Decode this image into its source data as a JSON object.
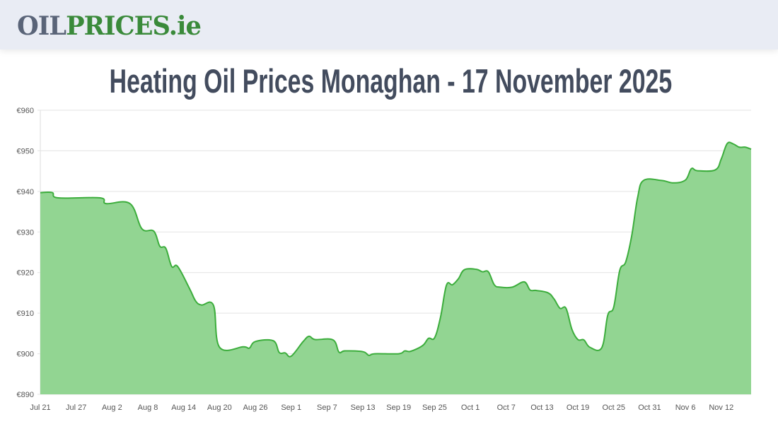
{
  "header": {
    "logo_part1": "OIL",
    "logo_part2": "PRICES.ie"
  },
  "page_title": "Heating Oil Prices Monaghan - 17 November 2025",
  "colors": {
    "line": "#3cad3c",
    "fill": "#92d592",
    "grid": "#e3e3e3",
    "logo_gray": "#5a6478",
    "logo_green": "#3a8a3a"
  },
  "chart_data": {
    "type": "area",
    "title": "",
    "xlabel": "",
    "ylabel": "",
    "ylim": [
      890,
      960
    ],
    "xlim": [
      "2025-07-21",
      "2025-11-17"
    ],
    "grid": true,
    "y_ticks": [
      "€890",
      "€900",
      "€910",
      "€920",
      "€930",
      "€940",
      "€950",
      "€960"
    ],
    "y_tick_values": [
      890,
      900,
      910,
      920,
      930,
      940,
      950,
      960
    ],
    "x_ticks": [
      {
        "label": "Jul 21",
        "date": "2025-07-21"
      },
      {
        "label": "Jul 27",
        "date": "2025-07-27"
      },
      {
        "label": "Aug 2",
        "date": "2025-08-02"
      },
      {
        "label": "Aug 8",
        "date": "2025-08-08"
      },
      {
        "label": "Aug 14",
        "date": "2025-08-14"
      },
      {
        "label": "Aug 20",
        "date": "2025-08-20"
      },
      {
        "label": "Aug 26",
        "date": "2025-08-26"
      },
      {
        "label": "Sep 1",
        "date": "2025-09-01"
      },
      {
        "label": "Sep 7",
        "date": "2025-09-07"
      },
      {
        "label": "Sep 13",
        "date": "2025-09-13"
      },
      {
        "label": "Sep 19",
        "date": "2025-09-19"
      },
      {
        "label": "Sep 25",
        "date": "2025-09-25"
      },
      {
        "label": "Oct 1",
        "date": "2025-10-01"
      },
      {
        "label": "Oct 7",
        "date": "2025-10-07"
      },
      {
        "label": "Oct 13",
        "date": "2025-10-13"
      },
      {
        "label": "Oct 19",
        "date": "2025-10-19"
      },
      {
        "label": "Oct 25",
        "date": "2025-10-25"
      },
      {
        "label": "Oct 31",
        "date": "2025-10-31"
      },
      {
        "label": "Nov 6",
        "date": "2025-11-06"
      },
      {
        "label": "Nov 12",
        "date": "2025-11-12"
      }
    ],
    "series": [
      {
        "points": [
          [
            "2025-07-21",
            939.7
          ],
          [
            "2025-07-23",
            939.7
          ],
          [
            "2025-07-24",
            938.4
          ],
          [
            "2025-07-31",
            938.4
          ],
          [
            "2025-08-01",
            937.0
          ],
          [
            "2025-08-05",
            937.0
          ],
          [
            "2025-08-07",
            930.8
          ],
          [
            "2025-08-09",
            930.2
          ],
          [
            "2025-08-10",
            926.5
          ],
          [
            "2025-08-11",
            926.0
          ],
          [
            "2025-08-12",
            921.5
          ],
          [
            "2025-08-13",
            921.5
          ],
          [
            "2025-08-15",
            916.0
          ],
          [
            "2025-08-16",
            913.0
          ],
          [
            "2025-08-17",
            912.0
          ],
          [
            "2025-08-19",
            911.9
          ],
          [
            "2025-08-20",
            901.6
          ],
          [
            "2025-08-24",
            901.7
          ],
          [
            "2025-08-25",
            901.4
          ],
          [
            "2025-08-26",
            903.0
          ],
          [
            "2025-08-29",
            903.2
          ],
          [
            "2025-08-30",
            900.3
          ],
          [
            "2025-08-31",
            900.2
          ],
          [
            "2025-09-01",
            899.4
          ],
          [
            "2025-09-03",
            903.0
          ],
          [
            "2025-09-04",
            904.3
          ],
          [
            "2025-09-05",
            903.5
          ],
          [
            "2025-09-08",
            903.4
          ],
          [
            "2025-09-09",
            900.4
          ],
          [
            "2025-09-10",
            900.7
          ],
          [
            "2025-09-13",
            900.5
          ],
          [
            "2025-09-14",
            899.6
          ],
          [
            "2025-09-15",
            900.0
          ],
          [
            "2025-09-19",
            900.0
          ],
          [
            "2025-09-20",
            900.7
          ],
          [
            "2025-09-21",
            900.6
          ],
          [
            "2025-09-23",
            902.0
          ],
          [
            "2025-09-24",
            903.8
          ],
          [
            "2025-09-25",
            903.9
          ],
          [
            "2025-09-26",
            909.0
          ],
          [
            "2025-09-27",
            916.9
          ],
          [
            "2025-09-28",
            917.0
          ],
          [
            "2025-09-29",
            918.5
          ],
          [
            "2025-09-30",
            920.7
          ],
          [
            "2025-10-02",
            920.8
          ],
          [
            "2025-10-03",
            920.2
          ],
          [
            "2025-10-04",
            920.2
          ],
          [
            "2025-10-05",
            917.0
          ],
          [
            "2025-10-06",
            916.4
          ],
          [
            "2025-10-08",
            916.4
          ],
          [
            "2025-10-10",
            917.7
          ],
          [
            "2025-10-11",
            915.7
          ],
          [
            "2025-10-12",
            915.6
          ],
          [
            "2025-10-14",
            915.0
          ],
          [
            "2025-10-15",
            913.5
          ],
          [
            "2025-10-16",
            911.2
          ],
          [
            "2025-10-17",
            911.2
          ],
          [
            "2025-10-18",
            906.0
          ],
          [
            "2025-10-19",
            903.5
          ],
          [
            "2025-10-20",
            903.4
          ],
          [
            "2025-10-21",
            901.6
          ],
          [
            "2025-10-23",
            901.5
          ],
          [
            "2025-10-24",
            909.5
          ],
          [
            "2025-10-25",
            911.5
          ],
          [
            "2025-10-26",
            920.5
          ],
          [
            "2025-10-27",
            922.6
          ],
          [
            "2025-10-28",
            929.0
          ],
          [
            "2025-10-29",
            938.5
          ],
          [
            "2025-10-30",
            942.7
          ],
          [
            "2025-11-02",
            942.7
          ],
          [
            "2025-11-04",
            942.1
          ],
          [
            "2025-11-06",
            942.8
          ],
          [
            "2025-11-07",
            945.6
          ],
          [
            "2025-11-08",
            945.1
          ],
          [
            "2025-11-11",
            945.3
          ],
          [
            "2025-11-12",
            948.0
          ],
          [
            "2025-11-13",
            951.8
          ],
          [
            "2025-11-14",
            951.7
          ],
          [
            "2025-11-15",
            950.9
          ],
          [
            "2025-11-16",
            950.9
          ],
          [
            "2025-11-17",
            950.4
          ]
        ]
      }
    ]
  }
}
